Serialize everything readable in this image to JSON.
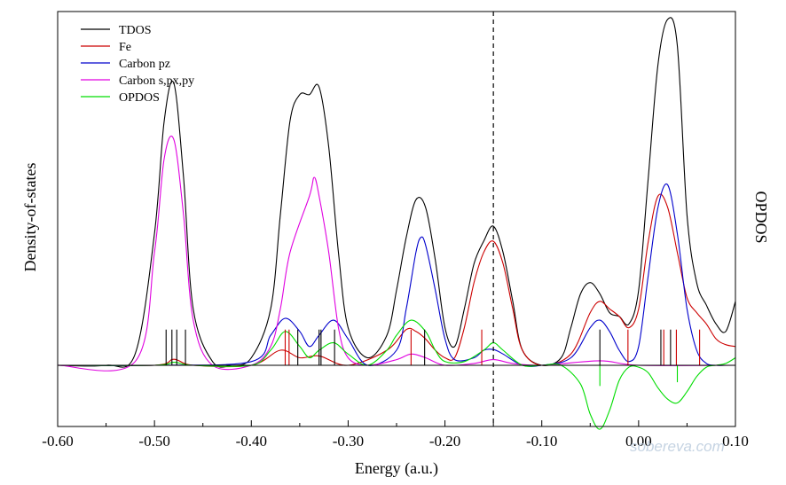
{
  "chart_data": {
    "type": "line",
    "title": "",
    "xlabel": "Energy (a.u.)",
    "ylabel": "Density-of-states",
    "y2label": "OPDOS",
    "xlim": [
      -0.6,
      0.1
    ],
    "xticks": [
      "-0.60",
      "-0.50",
      "-0.40",
      "-0.30",
      "-0.20",
      "-0.10",
      "0.00",
      "0.10"
    ],
    "ylim": [
      -0.19,
      1.1
    ],
    "grid": false,
    "legend_position": "top-left",
    "homo_line_x": -0.15,
    "series": [
      {
        "name": "TDOS",
        "color": "#000000",
        "x": [
          -0.6,
          -0.55,
          -0.52,
          -0.5,
          -0.49,
          -0.48,
          -0.47,
          -0.46,
          -0.44,
          -0.42,
          -0.4,
          -0.38,
          -0.37,
          -0.36,
          -0.35,
          -0.34,
          -0.33,
          -0.32,
          -0.31,
          -0.3,
          -0.28,
          -0.26,
          -0.25,
          -0.24,
          -0.23,
          -0.22,
          -0.21,
          -0.2,
          -0.19,
          -0.18,
          -0.17,
          -0.16,
          -0.15,
          -0.14,
          -0.13,
          -0.12,
          -0.1,
          -0.08,
          -0.07,
          -0.06,
          -0.05,
          -0.04,
          -0.03,
          -0.02,
          -0.01,
          0.0,
          0.01,
          0.02,
          0.03,
          0.04,
          0.05,
          0.06,
          0.07,
          0.08,
          0.09,
          0.1
        ],
        "y": [
          0.0,
          0.0,
          0.03,
          0.35,
          0.65,
          0.75,
          0.5,
          0.15,
          0.01,
          0.0,
          0.02,
          0.15,
          0.4,
          0.65,
          0.72,
          0.72,
          0.74,
          0.58,
          0.3,
          0.1,
          0.02,
          0.08,
          0.2,
          0.34,
          0.44,
          0.42,
          0.28,
          0.1,
          0.05,
          0.15,
          0.27,
          0.33,
          0.37,
          0.3,
          0.17,
          0.04,
          0.0,
          0.02,
          0.1,
          0.19,
          0.22,
          0.19,
          0.14,
          0.13,
          0.11,
          0.2,
          0.5,
          0.8,
          0.92,
          0.85,
          0.4,
          0.22,
          0.16,
          0.11,
          0.09,
          0.17
        ]
      },
      {
        "name": "Fe",
        "color": "#cc0000",
        "x": [
          -0.6,
          -0.5,
          -0.48,
          -0.46,
          -0.4,
          -0.37,
          -0.35,
          -0.33,
          -0.3,
          -0.26,
          -0.24,
          -0.23,
          -0.22,
          -0.21,
          -0.2,
          -0.19,
          -0.18,
          -0.17,
          -0.16,
          -0.15,
          -0.14,
          -0.13,
          -0.12,
          -0.1,
          -0.07,
          -0.05,
          -0.04,
          -0.03,
          -0.02,
          -0.01,
          0.0,
          0.01,
          0.02,
          0.03,
          0.04,
          0.05,
          0.06,
          0.07,
          0.08,
          0.09,
          0.1
        ],
        "y": [
          0.0,
          0.0,
          0.016,
          0.0,
          0.0,
          0.04,
          0.02,
          0.025,
          0.0,
          0.04,
          0.095,
          0.09,
          0.07,
          0.04,
          0.02,
          0.02,
          0.1,
          0.22,
          0.3,
          0.33,
          0.27,
          0.15,
          0.04,
          0.0,
          0.03,
          0.14,
          0.17,
          0.15,
          0.13,
          0.1,
          0.15,
          0.33,
          0.45,
          0.42,
          0.3,
          0.18,
          0.14,
          0.11,
          0.07,
          0.055,
          0.05
        ]
      },
      {
        "name": "Carbon pz",
        "color": "#0000cc",
        "x": [
          -0.6,
          -0.5,
          -0.4,
          -0.38,
          -0.365,
          -0.35,
          -0.34,
          -0.33,
          -0.315,
          -0.3,
          -0.28,
          -0.25,
          -0.24,
          -0.23,
          -0.225,
          -0.22,
          -0.21,
          -0.2,
          -0.19,
          -0.17,
          -0.16,
          -0.15,
          -0.14,
          -0.12,
          -0.1,
          -0.07,
          -0.05,
          -0.04,
          -0.03,
          -0.02,
          -0.01,
          0.0,
          0.01,
          0.02,
          0.03,
          0.04,
          0.05,
          0.06,
          0.07,
          0.08,
          0.09,
          0.1
        ],
        "y": [
          0.0,
          0.0,
          0.01,
          0.08,
          0.125,
          0.09,
          0.05,
          0.08,
          0.12,
          0.07,
          0.0,
          0.04,
          0.15,
          0.3,
          0.34,
          0.32,
          0.2,
          0.07,
          0.015,
          0.02,
          0.04,
          0.042,
          0.03,
          0.0,
          0.0,
          0.02,
          0.1,
          0.12,
          0.09,
          0.04,
          0.01,
          0.05,
          0.24,
          0.42,
          0.48,
          0.35,
          0.15,
          0.04,
          0.005,
          0.0,
          0.0,
          0.0
        ]
      },
      {
        "name": "Carbon s,px,py",
        "color": "#e000e0",
        "x": [
          -0.6,
          -0.52,
          -0.5,
          -0.49,
          -0.48,
          -0.47,
          -0.46,
          -0.44,
          -0.4,
          -0.38,
          -0.37,
          -0.36,
          -0.34,
          -0.335,
          -0.33,
          -0.32,
          -0.31,
          -0.3,
          -0.28,
          -0.25,
          -0.235,
          -0.22,
          -0.2,
          -0.17,
          -0.15,
          -0.13,
          -0.1,
          -0.04,
          0.0,
          0.1
        ],
        "y": [
          0.0,
          0.01,
          0.3,
          0.55,
          0.6,
          0.4,
          0.12,
          0.0,
          0.0,
          0.05,
          0.15,
          0.3,
          0.45,
          0.5,
          0.45,
          0.3,
          0.1,
          0.02,
          0.0,
          0.015,
          0.03,
          0.02,
          0.0,
          0.005,
          0.015,
          0.005,
          0.0,
          0.012,
          0.0,
          0.0
        ]
      },
      {
        "name": "OPDOS",
        "color": "#00dd00",
        "x": [
          -0.6,
          -0.5,
          -0.48,
          -0.46,
          -0.4,
          -0.38,
          -0.365,
          -0.35,
          -0.34,
          -0.33,
          -0.315,
          -0.3,
          -0.28,
          -0.26,
          -0.25,
          -0.235,
          -0.22,
          -0.21,
          -0.2,
          -0.18,
          -0.16,
          -0.15,
          -0.14,
          -0.12,
          -0.1,
          -0.08,
          -0.06,
          -0.05,
          -0.04,
          -0.03,
          -0.02,
          -0.01,
          0.0,
          0.01,
          0.02,
          0.03,
          0.04,
          0.05,
          0.06,
          0.07,
          0.08,
          0.09,
          0.1
        ],
        "y": [
          0.0,
          0.0,
          0.008,
          0.0,
          0.0,
          0.04,
          0.09,
          0.05,
          0.02,
          0.04,
          0.06,
          0.03,
          0.0,
          0.04,
          0.08,
          0.12,
          0.09,
          0.04,
          0.01,
          0.01,
          0.04,
          0.06,
          0.04,
          0.0,
          0.0,
          0.0,
          -0.05,
          -0.13,
          -0.17,
          -0.12,
          -0.04,
          -0.005,
          -0.005,
          -0.02,
          -0.06,
          -0.09,
          -0.1,
          -0.07,
          -0.03,
          -0.005,
          0.0,
          0.005,
          0.02
        ]
      }
    ],
    "stick_lines": [
      {
        "x": -0.488,
        "h": 0.095,
        "color": "#000000"
      },
      {
        "x": -0.482,
        "h": 0.095,
        "color": "#000000"
      },
      {
        "x": -0.477,
        "h": 0.095,
        "color": "#000000"
      },
      {
        "x": -0.468,
        "h": 0.095,
        "color": "#000000"
      },
      {
        "x": -0.365,
        "h": 0.095,
        "color": "#cc0000"
      },
      {
        "x": -0.361,
        "h": 0.095,
        "color": "#cc0000"
      },
      {
        "x": -0.352,
        "h": 0.095,
        "color": "#000000"
      },
      {
        "x": -0.33,
        "h": 0.095,
        "color": "#000000"
      },
      {
        "x": -0.328,
        "h": 0.095,
        "color": "#000000"
      },
      {
        "x": -0.314,
        "h": 0.095,
        "color": "#000000"
      },
      {
        "x": -0.235,
        "h": 0.095,
        "color": "#cc0000"
      },
      {
        "x": -0.221,
        "h": 0.095,
        "color": "#000000"
      },
      {
        "x": -0.162,
        "h": 0.095,
        "color": "#cc0000"
      },
      {
        "x": -0.04,
        "h": 0.095,
        "color": "#000000"
      },
      {
        "x": -0.011,
        "h": 0.095,
        "color": "#cc0000"
      },
      {
        "x": 0.023,
        "h": 0.095,
        "color": "#000000"
      },
      {
        "x": 0.026,
        "h": 0.095,
        "color": "#cc0000"
      },
      {
        "x": 0.033,
        "h": 0.095,
        "color": "#000000"
      },
      {
        "x": 0.039,
        "h": 0.095,
        "color": "#cc0000"
      },
      {
        "x": 0.063,
        "h": 0.095,
        "color": "#cc0000"
      },
      {
        "x": -0.04,
        "h": -0.055,
        "color": "#00dd00"
      },
      {
        "x": 0.04,
        "h": -0.045,
        "color": "#00dd00"
      }
    ]
  },
  "watermark": "sobereva.com"
}
